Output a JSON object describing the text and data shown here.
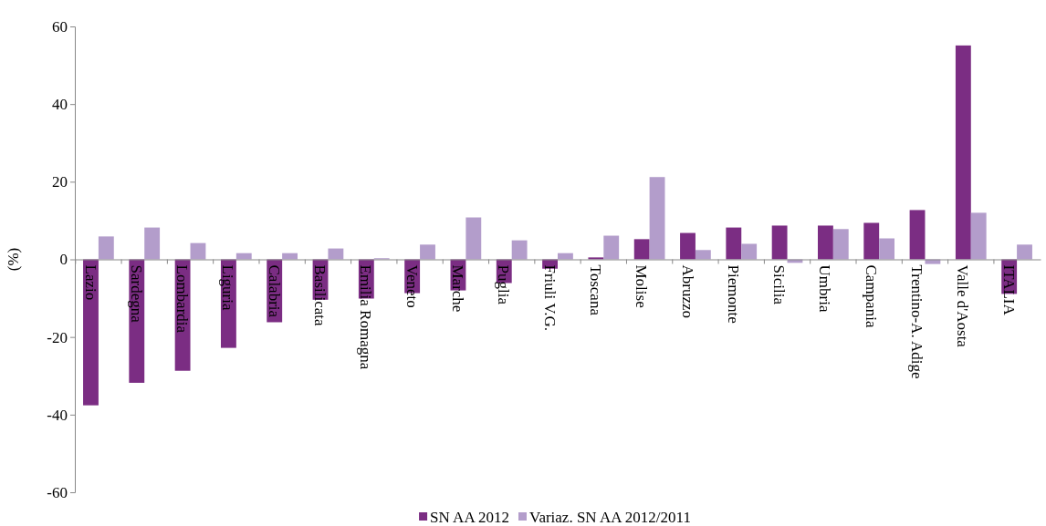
{
  "chart_data": {
    "type": "bar",
    "ylabel": "(%)",
    "categories": [
      "Lazio",
      "Sardegna",
      "Lombardia",
      "Liguria",
      "Calabria",
      "Basilicata",
      "Emilia Romagna",
      "Veneto",
      "Marche",
      "Puglia",
      "Friuli V.G.",
      "Toscana",
      "Molise",
      "Abruzzo",
      "Piemonte",
      "Sicilia",
      "Umbria",
      "Campania",
      "Trentino-A. Adige",
      "Valle d'Aosta",
      "ITALIA"
    ],
    "series": [
      {
        "name": "SN AA 2012",
        "color": "#7b2d83",
        "values": [
          -37.6,
          -31.8,
          -28.7,
          -22.8,
          -16.2,
          -10.4,
          -10.1,
          -8.7,
          -8.0,
          -6.1,
          -2.4,
          0.5,
          5.2,
          6.8,
          8.2,
          8.7,
          8.7,
          9.4,
          12.7,
          55.1,
          -8.9
        ]
      },
      {
        "name": "Variaz. SN AA 2012/2011",
        "color": "#b39dcb",
        "values": [
          5.9,
          8.2,
          4.2,
          1.6,
          1.6,
          2.8,
          0.3,
          3.8,
          10.8,
          4.9,
          1.6,
          6.1,
          21.2,
          2.4,
          4.0,
          -0.9,
          7.8,
          5.4,
          -1.2,
          12.0,
          3.8
        ]
      }
    ],
    "ylim": [
      -60,
      60
    ],
    "yticks": [
      -60,
      -40,
      -20,
      0,
      20,
      40,
      60
    ],
    "legend": "bottom"
  }
}
